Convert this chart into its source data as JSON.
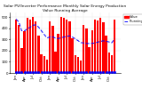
{
  "title": "Solar PV/Inverter Performance Monthly Solar Energy Production Value Running Average",
  "values": [
    480,
    430,
    220,
    370,
    490,
    480,
    500,
    460,
    330,
    170,
    150,
    120,
    460,
    420,
    190,
    350,
    500,
    490,
    480,
    460,
    310,
    160,
    140,
    110,
    430,
    400,
    230,
    380,
    480,
    470,
    490,
    450,
    330,
    180,
    160,
    480
  ],
  "running_avg": [
    480,
    455,
    377,
    375,
    394,
    408,
    426,
    430,
    410,
    376,
    344,
    313,
    321,
    323,
    311,
    307,
    314,
    321,
    326,
    331,
    321,
    305,
    289,
    271,
    268,
    263,
    263,
    264,
    268,
    275,
    282,
    287,
    283,
    277,
    270,
    305
  ],
  "bar_color": "#ff0000",
  "avg_color": "#0000ff",
  "bg_color": "#ffffff",
  "grid_color": "#aaaaaa",
  "ylim": [
    0,
    540
  ],
  "yticks": [
    0,
    100,
    200,
    300,
    400,
    500
  ],
  "n_bars": 36,
  "legend_labels": [
    "Value",
    "Running Avg"
  ],
  "title_fontsize": 3.2,
  "tick_fontsize": 2.8,
  "legend_fontsize": 2.5
}
